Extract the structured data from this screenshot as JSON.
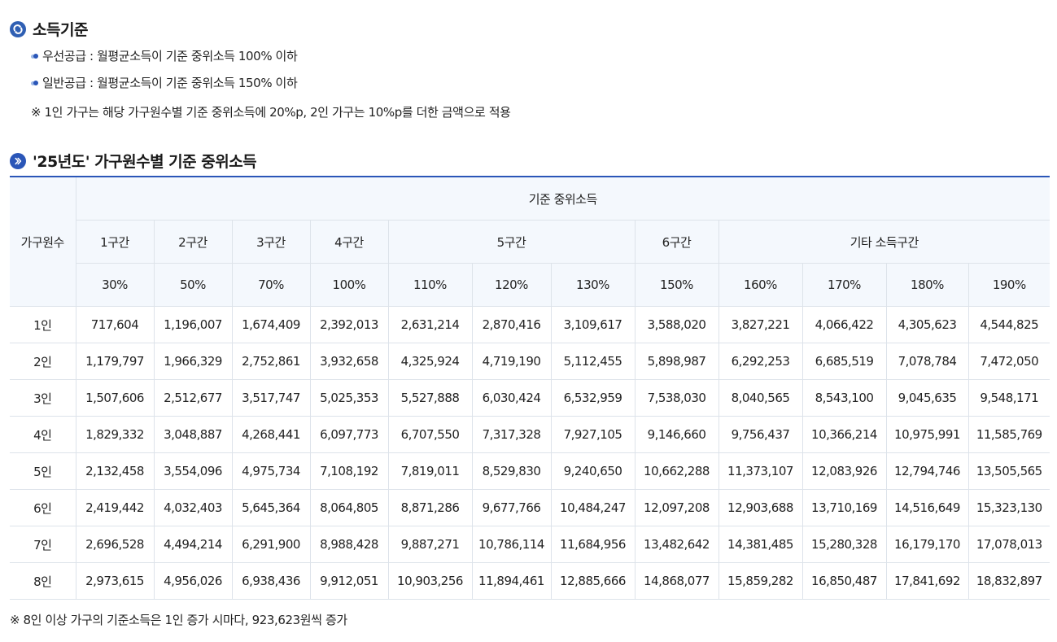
{
  "section1": {
    "title": "소득기준",
    "bullets": [
      "우선공급 : 월평균소득이 기준 중위소득 100% 이하",
      "일반공급 : 월평균소득이 기준 중위소득 150% 이하"
    ],
    "note": "※  1인 가구는 해당 가구원수별 기준 중위소득에 20%p, 2인 가구는 10%p를 더한 금액으로 적용"
  },
  "section2": {
    "title": "'25년도' 가구원수별 기준 중위소득"
  },
  "table": {
    "corner_header": "가구원수",
    "group_header": "기준 중위소득",
    "bands": [
      "1구간",
      "2구간",
      "3구간",
      "4구간",
      "5구간",
      "6구간",
      "기타 소득구간"
    ],
    "percents": [
      "30%",
      "50%",
      "70%",
      "100%",
      "110%",
      "120%",
      "130%",
      "150%",
      "160%",
      "170%",
      "180%",
      "190%"
    ],
    "rows": [
      {
        "label": "1인",
        "values": [
          "717,604",
          "1,196,007",
          "1,674,409",
          "2,392,013",
          "2,631,214",
          "2,870,416",
          "3,109,617",
          "3,588,020",
          "3,827,221",
          "4,066,422",
          "4,305,623",
          "4,544,825"
        ]
      },
      {
        "label": "2인",
        "values": [
          "1,179,797",
          "1,966,329",
          "2,752,861",
          "3,932,658",
          "4,325,924",
          "4,719,190",
          "5,112,455",
          "5,898,987",
          "6,292,253",
          "6,685,519",
          "7,078,784",
          "7,472,050"
        ]
      },
      {
        "label": "3인",
        "values": [
          "1,507,606",
          "2,512,677",
          "3,517,747",
          "5,025,353",
          "5,527,888",
          "6,030,424",
          "6,532,959",
          "7,538,030",
          "8,040,565",
          "8,543,100",
          "9,045,635",
          "9,548,171"
        ]
      },
      {
        "label": "4인",
        "values": [
          "1,829,332",
          "3,048,887",
          "4,268,441",
          "6,097,773",
          "6,707,550",
          "7,317,328",
          "7,927,105",
          "9,146,660",
          "9,756,437",
          "10,366,214",
          "10,975,991",
          "11,585,769"
        ]
      },
      {
        "label": "5인",
        "values": [
          "2,132,458",
          "3,554,096",
          "4,975,734",
          "7,108,192",
          "7,819,011",
          "8,529,830",
          "9,240,650",
          "10,662,288",
          "11,373,107",
          "12,083,926",
          "12,794,746",
          "13,505,565"
        ]
      },
      {
        "label": "6인",
        "values": [
          "2,419,442",
          "4,032,403",
          "5,645,364",
          "8,064,805",
          "8,871,286",
          "9,677,766",
          "10,484,247",
          "12,097,208",
          "12,903,688",
          "13,710,169",
          "14,516,649",
          "15,323,130"
        ]
      },
      {
        "label": "7인",
        "values": [
          "2,696,528",
          "4,494,214",
          "6,291,900",
          "8,988,428",
          "9,887,271",
          "10,786,114",
          "11,684,956",
          "13,482,642",
          "14,381,485",
          "15,280,328",
          "16,179,170",
          "17,078,013"
        ]
      },
      {
        "label": "8인",
        "values": [
          "2,973,615",
          "4,956,026",
          "6,938,436",
          "9,912,051",
          "10,903,256",
          "11,894,461",
          "12,885,666",
          "14,868,077",
          "15,859,282",
          "16,850,487",
          "17,841,692",
          "18,832,897"
        ]
      }
    ]
  },
  "footnote": "※  8인 이상 가구의 기준소득은 1인 증가 시마다, 923,623원씩 증가",
  "colors": {
    "accent": "#2a56b8",
    "header_bg": "#f4f8fd",
    "border": "#dde3ea"
  },
  "icons": {
    "section1": "refresh-circle-icon",
    "section2": "chevron-right-circle-icon"
  }
}
